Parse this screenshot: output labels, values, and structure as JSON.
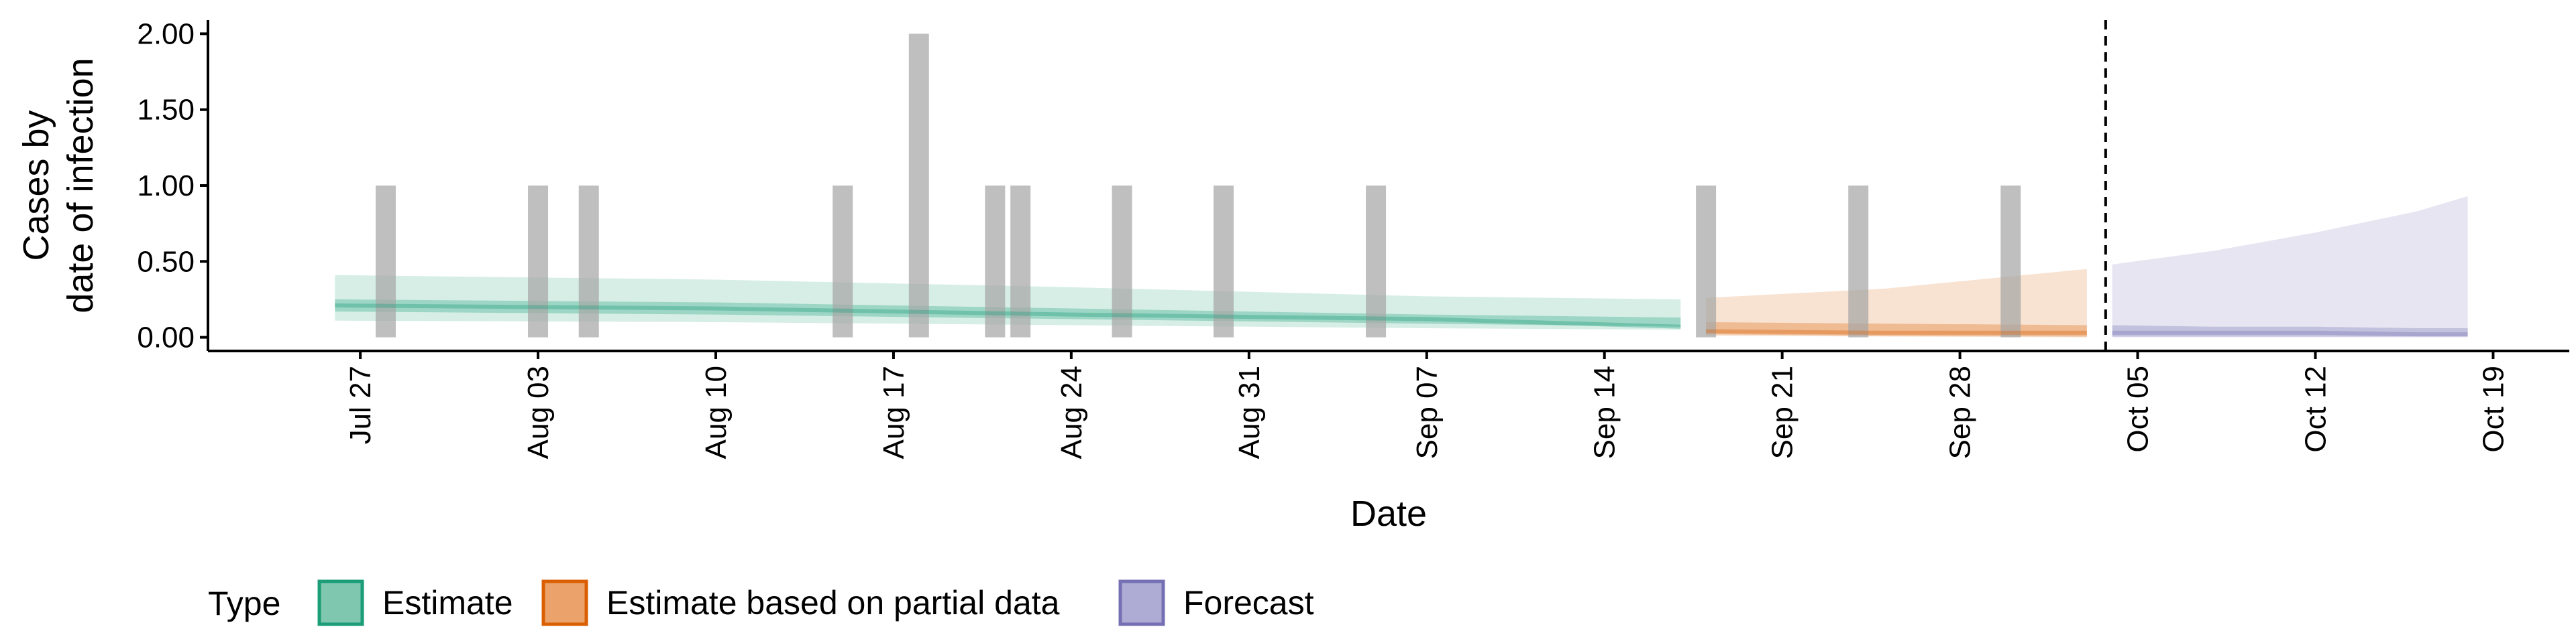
{
  "chart_data": {
    "type": "area",
    "xlabel": "Date",
    "ylabel_lines": [
      "Cases by",
      "date of infection"
    ],
    "ylim": [
      -0.09,
      2.09
    ],
    "yticks": [
      0.0,
      0.5,
      1.0,
      1.5,
      2.0
    ],
    "ytick_labels": [
      "0.00",
      "0.50",
      "1.00",
      "1.50",
      "2.00"
    ],
    "xlim": [
      "2020-07-21",
      "2020-10-22"
    ],
    "xticks": [
      {
        "date": "2020-07-27",
        "label": "Jul 27"
      },
      {
        "date": "2020-08-03",
        "label": "Aug 03"
      },
      {
        "date": "2020-08-10",
        "label": "Aug 10"
      },
      {
        "date": "2020-08-17",
        "label": "Aug 17"
      },
      {
        "date": "2020-08-24",
        "label": "Aug 24"
      },
      {
        "date": "2020-08-31",
        "label": "Aug 31"
      },
      {
        "date": "2020-09-07",
        "label": "Sep 07"
      },
      {
        "date": "2020-09-14",
        "label": "Sep 14"
      },
      {
        "date": "2020-09-21",
        "label": "Sep 21"
      },
      {
        "date": "2020-09-28",
        "label": "Sep 28"
      },
      {
        "date": "2020-10-05",
        "label": "Oct 05"
      },
      {
        "date": "2020-10-12",
        "label": "Oct 12"
      },
      {
        "date": "2020-10-19",
        "label": "Oct 19"
      }
    ],
    "reported_cases": [
      {
        "date": "2020-07-28",
        "value": 1
      },
      {
        "date": "2020-08-03",
        "value": 1
      },
      {
        "date": "2020-08-05",
        "value": 1
      },
      {
        "date": "2020-08-15",
        "value": 1
      },
      {
        "date": "2020-08-18",
        "value": 2
      },
      {
        "date": "2020-08-21",
        "value": 1
      },
      {
        "date": "2020-08-22",
        "value": 1
      },
      {
        "date": "2020-08-26",
        "value": 1
      },
      {
        "date": "2020-08-30",
        "value": 1
      },
      {
        "date": "2020-09-05",
        "value": 1
      },
      {
        "date": "2020-09-18",
        "value": 1
      },
      {
        "date": "2020-09-24",
        "value": 1
      },
      {
        "date": "2020-09-30",
        "value": 1
      }
    ],
    "forecast_date": "2020-10-03",
    "series": [
      {
        "name": "Estimate",
        "color": "#1b9e77",
        "x": [
          "2020-07-26",
          "2020-08-10",
          "2020-08-24",
          "2020-09-07",
          "2020-09-17"
        ],
        "outer_lower": [
          0.11,
          0.1,
          0.08,
          0.06,
          0.05
        ],
        "outer_upper": [
          0.41,
          0.38,
          0.33,
          0.27,
          0.25
        ],
        "inner_lower": [
          0.17,
          0.15,
          0.12,
          0.09,
          0.07
        ],
        "inner_upper": [
          0.25,
          0.23,
          0.19,
          0.15,
          0.13
        ],
        "median": [
          0.21,
          0.19,
          0.15,
          0.12,
          0.07
        ]
      },
      {
        "name": "Estimate based on partial data",
        "color": "#d95f02",
        "x": [
          "2020-09-18",
          "2020-09-25",
          "2020-10-03"
        ],
        "outer_lower": [
          0.01,
          0.005,
          0.0
        ],
        "outer_upper": [
          0.26,
          0.32,
          0.45
        ],
        "inner_lower": [
          0.02,
          0.01,
          0.005
        ],
        "inner_upper": [
          0.1,
          0.09,
          0.08
        ],
        "median": [
          0.04,
          0.03,
          0.03
        ]
      },
      {
        "name": "Forecast",
        "color": "#7570b3",
        "x": [
          "2020-10-04",
          "2020-10-08",
          "2020-10-12",
          "2020-10-16",
          "2020-10-18"
        ],
        "outer_lower": [
          0.0,
          0.0,
          0.0,
          0.0,
          0.0
        ],
        "outer_upper": [
          0.48,
          0.57,
          0.69,
          0.83,
          0.93
        ],
        "inner_lower": [
          0.005,
          0.005,
          0.005,
          0.005,
          0.005
        ],
        "inner_upper": [
          0.08,
          0.07,
          0.07,
          0.06,
          0.06
        ],
        "median": [
          0.03,
          0.03,
          0.03,
          0.02,
          0.02
        ]
      }
    ],
    "legend": {
      "title": "Type",
      "position": "bottom",
      "items": [
        {
          "label": "Estimate",
          "fill": "#7fc7af",
          "border": "#1b9e77"
        },
        {
          "label": "Estimate based on partial data",
          "fill": "#eca36b",
          "border": "#d95f02"
        },
        {
          "label": "Forecast",
          "fill": "#aeabd5",
          "border": "#7570b3"
        }
      ]
    },
    "grid": false
  }
}
